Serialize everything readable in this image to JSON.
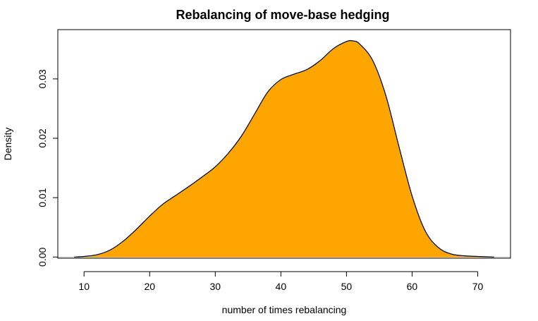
{
  "chart_data": {
    "type": "area",
    "title": "Rebalancing of move-base hedging",
    "xlabel": "number of times rebalancing",
    "ylabel": "Density",
    "xlim": [
      6,
      75
    ],
    "ylim": [
      -0.0002,
      0.0383
    ],
    "x_ticks": [
      10,
      20,
      30,
      40,
      50,
      60,
      70
    ],
    "y_ticks": [
      0.0,
      0.01,
      0.02,
      0.03
    ],
    "x_tick_labels": [
      "10",
      "20",
      "30",
      "40",
      "50",
      "60",
      "70"
    ],
    "y_tick_labels": [
      "0.00",
      "0.01",
      "0.02",
      "0.03"
    ],
    "grid": false,
    "legend": "none",
    "fill_color": "#FFA500",
    "line_color": "#000000",
    "baseline_color": "#bebebe",
    "series": [
      {
        "x": [
          8.5,
          10,
          12,
          14,
          16,
          18,
          20,
          22,
          24,
          26,
          28,
          30,
          32,
          34,
          36,
          38,
          40,
          42,
          44,
          46,
          48,
          50,
          51,
          52,
          54,
          56,
          58,
          60,
          62,
          64,
          66,
          68,
          70,
          72.5
        ],
        "y": [
          0.0,
          0.0001,
          0.0004,
          0.0012,
          0.0027,
          0.0047,
          0.0069,
          0.0089,
          0.0104,
          0.0119,
          0.0135,
          0.0152,
          0.0175,
          0.0204,
          0.0241,
          0.0278,
          0.0299,
          0.0308,
          0.0316,
          0.0331,
          0.0351,
          0.0363,
          0.0364,
          0.0359,
          0.0331,
          0.0272,
          0.0186,
          0.0103,
          0.0044,
          0.0016,
          0.0005,
          0.0002,
          0.0001,
          0.0
        ]
      }
    ]
  }
}
